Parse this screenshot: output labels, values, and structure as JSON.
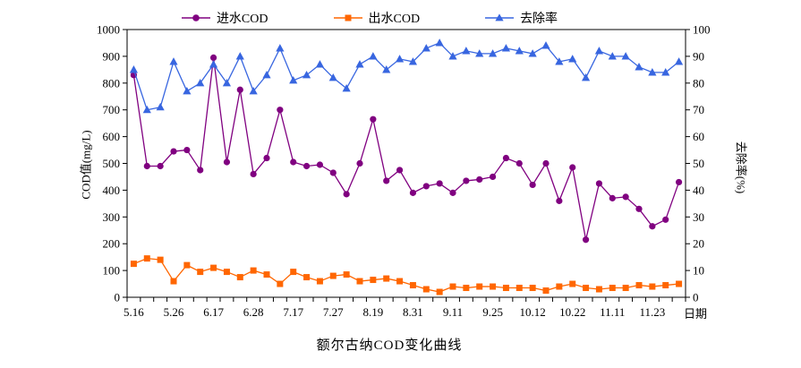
{
  "title": "额尔古纳COD变化曲线",
  "legend": {
    "items": [
      {
        "key": "influent-cod",
        "label": "进水COD",
        "color": "#800080",
        "marker": "circle"
      },
      {
        "key": "effluent-cod",
        "label": "出水COD",
        "color": "#FF6600",
        "marker": "square"
      },
      {
        "key": "removal-rate",
        "label": "去除率",
        "color": "#3866E0",
        "marker": "triangle"
      }
    ]
  },
  "axes": {
    "left_title": "COD值(mg/L)",
    "right_title": "去除率(%)",
    "x_title": "日期"
  },
  "chart_data": {
    "type": "line",
    "title": "额尔古纳COD变化曲线",
    "xlabel": "日期",
    "ylabel_left": "COD值(mg/L)",
    "ylabel_right": "去除率(%)",
    "ylim_left": [
      0,
      1000
    ],
    "ylim_right": [
      0,
      100
    ],
    "ytick_step_left": 100,
    "ytick_step_right": 10,
    "grid": false,
    "legend_position": "top",
    "n_points": 42,
    "x_label_every": 3,
    "x_tick_labels": [
      "5.16",
      "5.26",
      "6.17",
      "6.28",
      "7.17",
      "7.27",
      "8.19",
      "8.31",
      "9.11",
      "9.25",
      "10.12",
      "10.22",
      "11.11",
      "11.23"
    ],
    "series": [
      {
        "name": "进水COD",
        "key": "influent-cod",
        "axis": "left",
        "color": "#800080",
        "marker": "circle",
        "values": [
          830,
          490,
          490,
          545,
          550,
          475,
          895,
          505,
          775,
          460,
          520,
          700,
          505,
          490,
          495,
          465,
          385,
          500,
          665,
          435,
          475,
          390,
          415,
          425,
          390,
          435,
          440,
          450,
          520,
          500,
          420,
          500,
          360,
          485,
          215,
          425,
          370,
          375,
          330,
          265,
          290,
          430
        ]
      },
      {
        "name": "出水COD",
        "key": "effluent-cod",
        "axis": "left",
        "color": "#FF6600",
        "marker": "square",
        "values": [
          125,
          145,
          140,
          60,
          120,
          95,
          110,
          95,
          75,
          100,
          85,
          50,
          95,
          75,
          60,
          80,
          85,
          60,
          65,
          70,
          60,
          45,
          30,
          20,
          40,
          35,
          40,
          40,
          35,
          35,
          35,
          25,
          40,
          50,
          35,
          30,
          35,
          35,
          45,
          40,
          45,
          50
        ]
      },
      {
        "name": "去除率",
        "key": "removal-rate",
        "axis": "right",
        "color": "#3866E0",
        "marker": "triangle",
        "values": [
          85,
          70,
          71,
          88,
          77,
          80,
          87,
          80,
          90,
          77,
          83,
          93,
          81,
          83,
          87,
          82,
          78,
          87,
          90,
          85,
          89,
          88,
          93,
          95,
          90,
          92,
          91,
          91,
          93,
          92,
          91,
          94,
          88,
          89,
          82,
          92,
          90,
          90,
          86,
          84,
          84,
          88
        ]
      }
    ]
  }
}
